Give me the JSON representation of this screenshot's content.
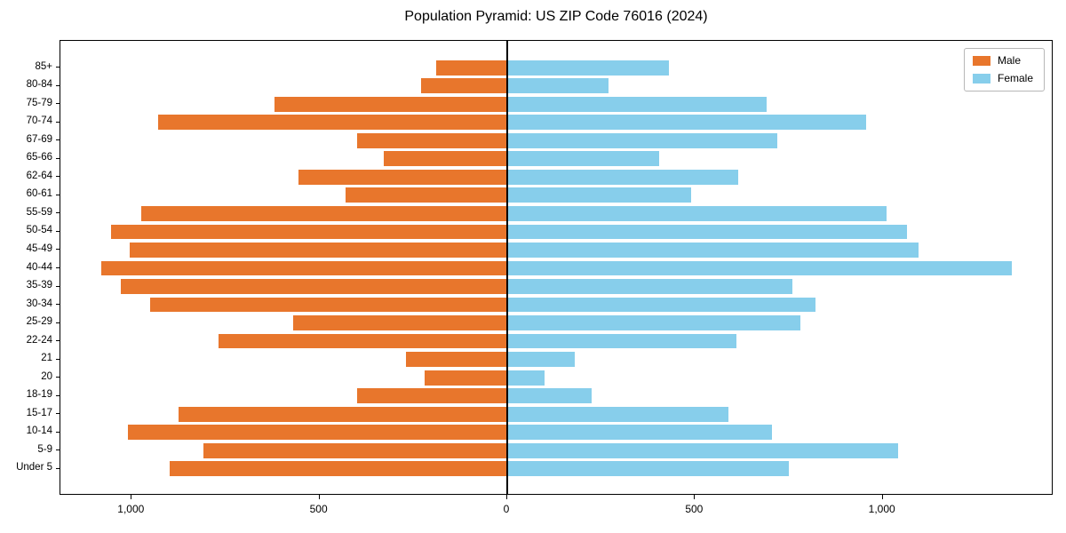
{
  "title": "Population Pyramid: US ZIP Code 76016 (2024)",
  "colors": {
    "male": "#E8762C",
    "female": "#87CEEB",
    "axis": "#000000",
    "background": "#FFFFFF"
  },
  "legend": {
    "position": "top-right",
    "entries": [
      "Male",
      "Female"
    ]
  },
  "chart_data": {
    "type": "bar",
    "orientation": "horizontal",
    "variant": "population-pyramid",
    "title": "Population Pyramid: US ZIP Code 76016 (2024)",
    "xlabel": "",
    "ylabel": "",
    "grid": false,
    "legend_position": "top-right",
    "xlim": [
      -1190,
      1455
    ],
    "categories": [
      "85+",
      "80-84",
      "75-79",
      "70-74",
      "67-69",
      "65-66",
      "62-64",
      "60-61",
      "55-59",
      "50-54",
      "45-49",
      "40-44",
      "35-39",
      "30-34",
      "25-29",
      "22-24",
      "21",
      "20",
      "18-19",
      "15-17",
      "10-14",
      "5-9",
      "Under 5"
    ],
    "series": [
      {
        "name": "Male",
        "side": "left",
        "color": "#E8762C",
        "values": [
          190,
          230,
          620,
          930,
          400,
          330,
          555,
          430,
          975,
          1055,
          1005,
          1080,
          1030,
          950,
          570,
          770,
          270,
          220,
          400,
          875,
          1010,
          810,
          900
        ]
      },
      {
        "name": "Female",
        "side": "right",
        "color": "#87CEEB",
        "values": [
          430,
          270,
          690,
          955,
          720,
          405,
          615,
          490,
          1010,
          1065,
          1095,
          1345,
          760,
          820,
          780,
          610,
          180,
          100,
          225,
          590,
          705,
          1040,
          750
        ]
      }
    ],
    "x_ticks": [
      {
        "value": -1000,
        "label": "1,000"
      },
      {
        "value": -500,
        "label": "500"
      },
      {
        "value": 0,
        "label": "0"
      },
      {
        "value": 500,
        "label": "500"
      },
      {
        "value": 1000,
        "label": "1,000"
      }
    ]
  }
}
